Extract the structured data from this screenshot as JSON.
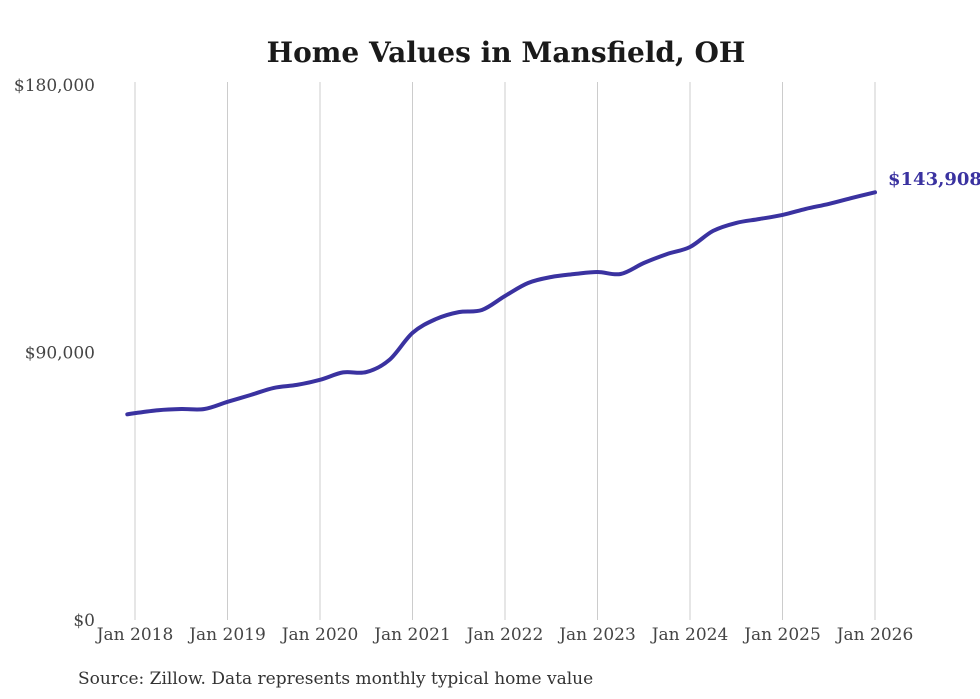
{
  "chart": {
    "title": "Home Values in Mansfield, OH",
    "source_note": "Source: Zillow. Data represents monthly typical home value",
    "final_value_label": "$143,908",
    "colors": {
      "line": "#3a32a0",
      "grid": "#cccccc",
      "title_text": "#1a1a1a",
      "axis_text": "#444444",
      "source_text": "#333333",
      "background": "#ffffff"
    }
  },
  "chart_data": {
    "type": "line",
    "title": "Home Values in Mansfield, OH",
    "series": [
      {
        "name": "Typical home value",
        "x": [
          "2017-12",
          "2018-01",
          "2018-04",
          "2018-07",
          "2018-10",
          "2019-01",
          "2019-04",
          "2019-07",
          "2019-10",
          "2020-01",
          "2020-04",
          "2020-07",
          "2020-10",
          "2021-01",
          "2021-04",
          "2021-07",
          "2021-10",
          "2022-01",
          "2022-04",
          "2022-07",
          "2022-10",
          "2023-01",
          "2023-04",
          "2023-07",
          "2023-10",
          "2024-01",
          "2024-04",
          "2024-07",
          "2024-10",
          "2025-01",
          "2025-04",
          "2025-07",
          "2025-10",
          "2026-01"
        ],
        "values": [
          69200,
          69600,
          70600,
          71000,
          71000,
          73400,
          75700,
          78100,
          79100,
          80800,
          83300,
          83400,
          87500,
          96600,
          101200,
          103600,
          104300,
          109000,
          113400,
          115400,
          116400,
          117100,
          116400,
          120100,
          123100,
          125500,
          130900,
          133600,
          134900,
          136300,
          138300,
          140000,
          142000,
          143908
        ]
      }
    ],
    "x_tick_labels": [
      "Jan 2018",
      "Jan 2019",
      "Jan 2020",
      "Jan 2021",
      "Jan 2022",
      "Jan 2023",
      "Jan 2024",
      "Jan 2025",
      "Jan 2026"
    ],
    "y_tick_labels": [
      "$180,000",
      "$90,000",
      "$0"
    ],
    "y_tick_values": [
      180000,
      90000,
      0
    ],
    "ylim": [
      0,
      180000
    ],
    "grid": "vertical-only",
    "legend": "none",
    "annotation": {
      "text": "$143,908",
      "position": "end-of-line"
    },
    "final_value": 143908
  }
}
